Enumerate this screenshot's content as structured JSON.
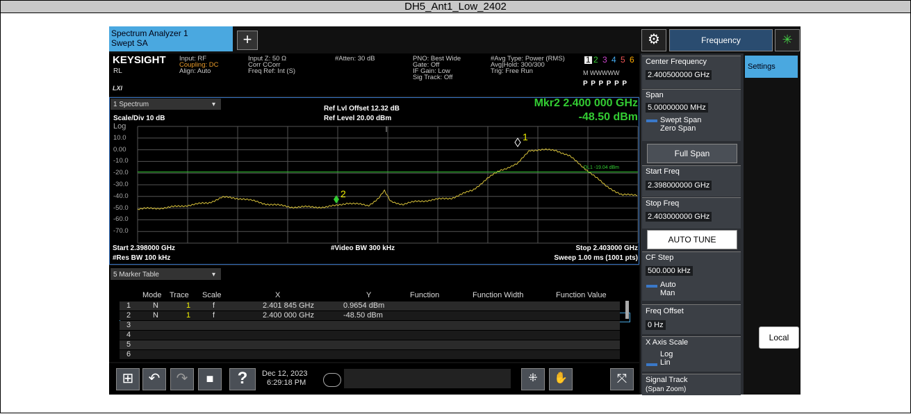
{
  "window_title": "DH5_Ant1_Low_2402",
  "tabs": {
    "active": [
      "Spectrum Analyzer 1",
      "Swept SA"
    ],
    "add": "+"
  },
  "mode_menu": "Frequency",
  "header": {
    "brand": "KEYSIGHT",
    "rl": "RL",
    "lxi": "LXI",
    "cols": [
      [
        "Input: RF",
        "Coupling: DC",
        "Align: Auto"
      ],
      [
        "Input Z: 50 Ω",
        "Corr CCorr",
        "Freq Ref: Int (S)"
      ],
      [
        "#Atten: 30 dB"
      ],
      [
        "PNO: Best Wide",
        "Gate: Off",
        "IF Gain: Low",
        "Sig Track: Off"
      ],
      [
        "#Avg Type: Power (RMS)",
        "Avg|Hold: 300/300",
        "Trig: Free Run"
      ]
    ],
    "trace_nums": [
      "1",
      "2",
      "3",
      "4",
      "5",
      "6"
    ],
    "trace_types": "M WWWWW",
    "detectors": "P P P P P P"
  },
  "spectrum": {
    "window": "1 Spectrum",
    "scale": "Scale/Div 10 dB",
    "ref_offset": "Ref Lvl Offset 12.32 dB",
    "ref_level": "Ref Level 20.00 dBm",
    "marker_freq": "Mkr2 2.400 000 GHz",
    "marker_amp": "-48.50 dBm",
    "log": "Log",
    "yticks": [
      "10.0",
      "0.00",
      "-10.0",
      "-20.0",
      "-30.0",
      "-40.0",
      "-50.0",
      "-60.0",
      "-70.0"
    ],
    "limit": "DL1 -19.04 dBm",
    "marker_labels": [
      "1",
      "2"
    ],
    "start": "Start 2.398000 GHz",
    "res_bw": "#Res BW 100 kHz",
    "video_bw": "#Video BW 300 kHz",
    "stop": "Stop 2.403000 GHz",
    "sweep": "Sweep 1.00 ms (1001 pts)"
  },
  "marker_table": {
    "title": "5 Marker Table",
    "headers": [
      "Mode",
      "Trace",
      "Scale",
      "X",
      "Y",
      "Function",
      "Function Width",
      "Function Value"
    ],
    "rows": [
      [
        "1",
        "N",
        "1",
        "f",
        "2.401 845 GHz",
        "0.9654 dBm"
      ],
      [
        "2",
        "N",
        "1",
        "f",
        "2.400 000 GHz",
        "-48.50 dBm"
      ],
      [
        "3"
      ],
      [
        "4"
      ],
      [
        "5"
      ],
      [
        "6"
      ]
    ]
  },
  "taskbar": {
    "date": "Dec 12, 2023",
    "time": "6:29:18 PM"
  },
  "menu": {
    "settings": "Settings",
    "local": "Local",
    "center_label": "Center Frequency",
    "center_value": "2.400500000 GHz",
    "span_label": "Span",
    "span_value": "5.00000000 MHz",
    "swept": "Swept Span",
    "zero": "Zero Span",
    "full_span": "Full Span",
    "start_label": "Start Freq",
    "start_value": "2.398000000 GHz",
    "stop_label": "Stop Freq",
    "stop_value": "2.403000000 GHz",
    "auto_tune": "AUTO TUNE",
    "cf_label": "CF Step",
    "cf_value": "500.000 kHz",
    "auto": "Auto",
    "man": "Man",
    "offset_label": "Freq Offset",
    "offset_value": "0 Hz",
    "xscale_label": "X Axis Scale",
    "log": "Log",
    "lin": "Lin",
    "track_label": "Signal Track",
    "track_sub": "(Span Zoom)"
  }
}
